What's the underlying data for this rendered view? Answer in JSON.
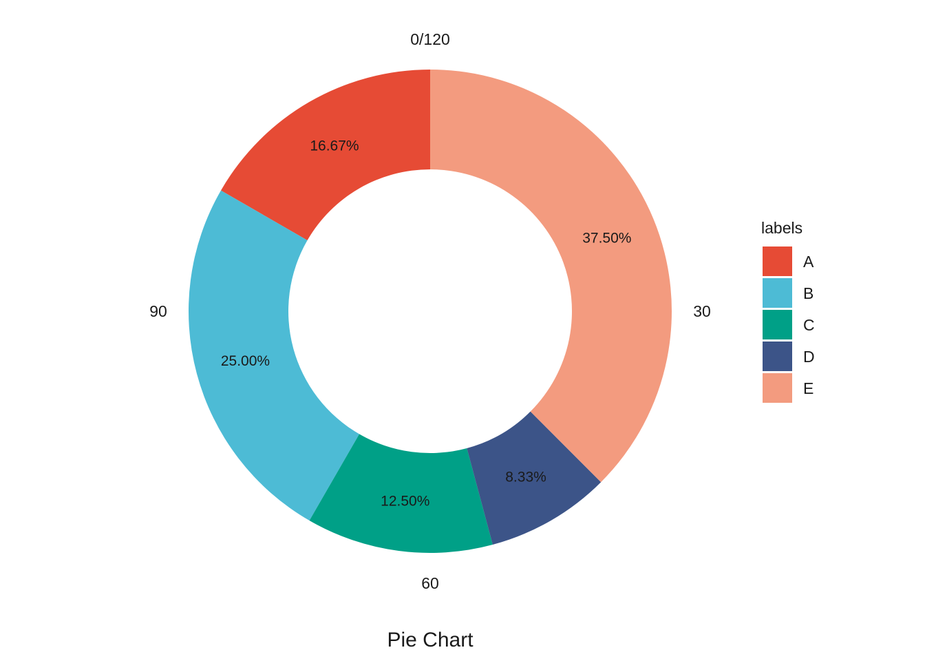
{
  "chart_data": {
    "type": "pie",
    "subtype": "donut",
    "xlabel": "Pie Chart",
    "legend": {
      "title": "labels",
      "position": "right"
    },
    "categories": [
      "A",
      "B",
      "C",
      "D",
      "E"
    ],
    "values": [
      16.67,
      25.0,
      12.5,
      8.33,
      37.5
    ],
    "value_labels": [
      "16.67%",
      "25.00%",
      "12.50%",
      "8.33%",
      "37.50%"
    ],
    "colors": [
      "#E64B35",
      "#4DBBD5",
      "#00A087",
      "#3C5488",
      "#F39B7F"
    ],
    "direction": "counterclockwise",
    "start": "top",
    "angle_axis": {
      "range": [
        0,
        120
      ],
      "ticks": [
        {
          "value": 0,
          "label": "0/120"
        },
        {
          "value": 30,
          "label": "30"
        },
        {
          "value": 60,
          "label": "60"
        },
        {
          "value": 90,
          "label": "90"
        }
      ]
    }
  }
}
